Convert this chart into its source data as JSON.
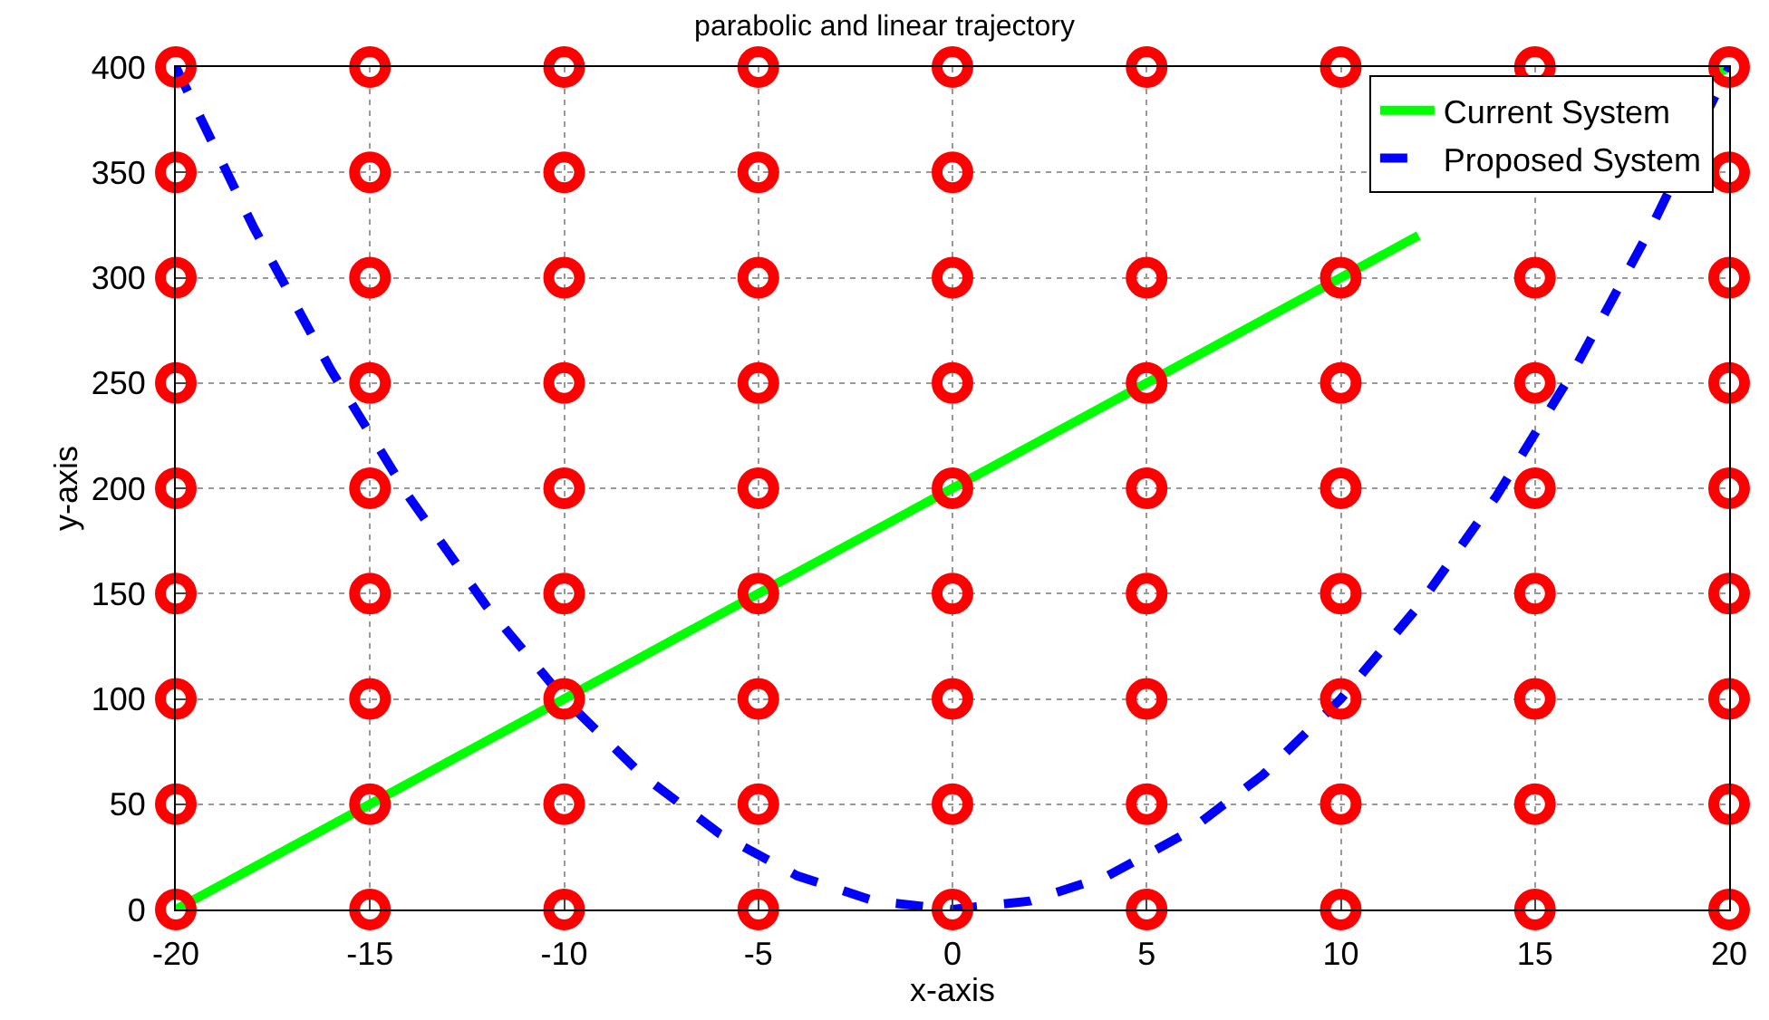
{
  "chart_data": {
    "type": "line",
    "title": "parabolic and linear trajectory",
    "xlabel": "x-axis",
    "ylabel": "y-axis",
    "xlim": [
      -20,
      20
    ],
    "xticks": [
      -20,
      -15,
      -10,
      -5,
      0,
      5,
      10,
      15,
      20
    ],
    "ylim": [
      0,
      400
    ],
    "yticks": [
      0,
      50,
      100,
      150,
      200,
      250,
      300,
      350,
      400
    ],
    "grid": true,
    "legend": "top right",
    "series": [
      {
        "name": "Current System",
        "color": "#00ff00",
        "line_style": "solid",
        "marker": "none",
        "x": [
          -20,
          -15,
          -10,
          -5,
          0,
          5,
          10,
          12,
          15,
          19.6,
          20
        ],
        "values": [
          0,
          50,
          100,
          150,
          200,
          250,
          300,
          320,
          null,
          396,
          400
        ]
      },
      {
        "name": "Proposed System",
        "color": "#0000ff",
        "line_style": "dashed",
        "marker": "none",
        "x": [
          -20,
          -18,
          -16,
          -14,
          -12,
          -10,
          -8,
          -6,
          -4,
          -2,
          0,
          2,
          4,
          6,
          8,
          10,
          12,
          14,
          16,
          18,
          20
        ],
        "values": [
          400,
          324,
          256,
          196,
          144,
          100,
          64,
          36,
          16,
          4,
          0,
          4,
          16,
          36,
          64,
          100,
          144,
          196,
          256,
          324,
          400
        ]
      },
      {
        "type": "scatter",
        "color": "#ff0000",
        "marker": "circle",
        "x": [
          -20,
          -15,
          -10,
          -5,
          0,
          5,
          10,
          15,
          20,
          -20,
          -15,
          -10,
          -5,
          0,
          5,
          10,
          15,
          20,
          -20,
          -15,
          -10,
          -5,
          0,
          5,
          10,
          15,
          20,
          -20,
          -15,
          -10,
          -5,
          0,
          5,
          10,
          15,
          20,
          -20,
          -15,
          -10,
          -5,
          0,
          5,
          10,
          15,
          20,
          -20,
          -15,
          -10,
          -5,
          0,
          5,
          10,
          15,
          20,
          -20,
          -15,
          -10,
          -5,
          0,
          5,
          10,
          15,
          20,
          -20,
          -15,
          -10,
          -5,
          0,
          5,
          10,
          15,
          20,
          -20,
          -15,
          -10,
          -5,
          0,
          5,
          10,
          15,
          20
        ],
        "values": [
          0,
          0,
          0,
          0,
          0,
          0,
          0,
          0,
          0,
          50,
          50,
          50,
          50,
          50,
          50,
          50,
          50,
          50,
          100,
          100,
          100,
          100,
          100,
          100,
          100,
          100,
          100,
          150,
          150,
          150,
          150,
          150,
          150,
          150,
          150,
          150,
          200,
          200,
          200,
          200,
          200,
          200,
          200,
          200,
          200,
          250,
          250,
          250,
          250,
          250,
          250,
          250,
          250,
          250,
          300,
          300,
          300,
          300,
          300,
          300,
          300,
          300,
          300,
          350,
          350,
          350,
          350,
          350,
          null,
          null,
          null,
          350,
          400,
          400,
          400,
          400,
          400,
          400,
          400,
          400,
          400
        ]
      }
    ]
  }
}
